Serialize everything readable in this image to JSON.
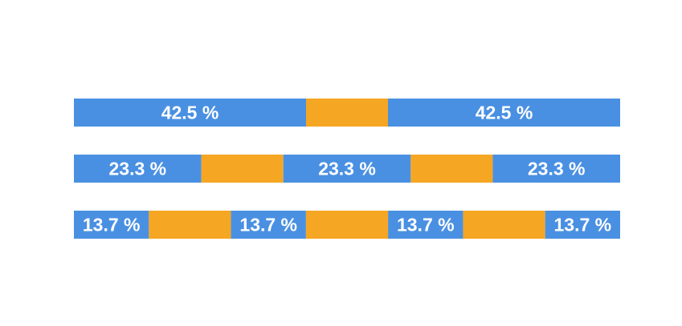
{
  "chart_data": {
    "type": "bar",
    "orientation": "horizontal",
    "stacked": true,
    "title": "",
    "xlabel": "",
    "ylabel": "",
    "grid": false,
    "legend": "none",
    "colors": {
      "blue": "#4a90e2",
      "orange": "#f5a623"
    },
    "unit_suffix": " %",
    "bars": [
      {
        "segments": [
          {
            "color": "blue",
            "value": 42.5,
            "label": "42.5 %"
          },
          {
            "color": "orange",
            "value": 15.0,
            "label": ""
          },
          {
            "color": "blue",
            "value": 42.5,
            "label": "42.5 %"
          }
        ]
      },
      {
        "segments": [
          {
            "color": "blue",
            "value": 23.3,
            "label": "23.3 %"
          },
          {
            "color": "orange",
            "value": 15.0,
            "label": ""
          },
          {
            "color": "blue",
            "value": 23.3,
            "label": "23.3 %"
          },
          {
            "color": "orange",
            "value": 15.0,
            "label": ""
          },
          {
            "color": "blue",
            "value": 23.3,
            "label": "23.3 %"
          }
        ]
      },
      {
        "segments": [
          {
            "color": "blue",
            "value": 13.7,
            "label": "13.7 %"
          },
          {
            "color": "orange",
            "value": 15.0,
            "label": ""
          },
          {
            "color": "blue",
            "value": 13.7,
            "label": "13.7 %"
          },
          {
            "color": "orange",
            "value": 15.0,
            "label": ""
          },
          {
            "color": "blue",
            "value": 13.7,
            "label": "13.7 %"
          },
          {
            "color": "orange",
            "value": 15.0,
            "label": ""
          },
          {
            "color": "blue",
            "value": 13.7,
            "label": "13.7 %"
          }
        ]
      }
    ]
  }
}
